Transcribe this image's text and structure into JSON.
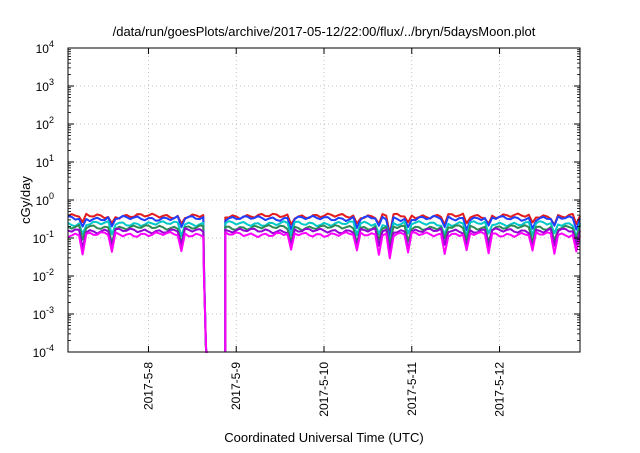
{
  "chart_data": {
    "type": "line",
    "title": "/data/run/goesPlots/archive/2017-05-12/22:00/flux/../bryn/5daysMoon.plot",
    "xlabel": "Coordinated Universal Time (UTC)",
    "ylabel": "cGy/day",
    "y_scale": "log",
    "ylim": [
      0.0001,
      10000
    ],
    "xlim": [
      "2017-05-07 02:00",
      "2017-05-12 22:00"
    ],
    "y_ticks": [
      {
        "value": 0.0001,
        "base": "10",
        "exp": "-4"
      },
      {
        "value": 0.001,
        "base": "10",
        "exp": "-3"
      },
      {
        "value": 0.01,
        "base": "10",
        "exp": "-2"
      },
      {
        "value": 0.1,
        "base": "10",
        "exp": "-1"
      },
      {
        "value": 1,
        "base": "10",
        "exp": "0"
      },
      {
        "value": 10,
        "base": "10",
        "exp": "1"
      },
      {
        "value": 100,
        "base": "10",
        "exp": "2"
      },
      {
        "value": 1000,
        "base": "10",
        "exp": "3"
      },
      {
        "value": 10000,
        "base": "10",
        "exp": "4"
      }
    ],
    "x_ticks": [
      {
        "value": "2017-05-08 00:00",
        "label": "2017-5-8"
      },
      {
        "value": "2017-05-09 00:00",
        "label": "2017-5-9"
      },
      {
        "value": "2017-05-10 00:00",
        "label": "2017-5-10"
      },
      {
        "value": "2017-05-11 00:00",
        "label": "2017-5-11"
      },
      {
        "value": "2017-05-12 00:00",
        "label": "2017-5-12"
      }
    ],
    "grid": true,
    "legend": "none",
    "gap": {
      "start": "2017-05-08 15:00",
      "end": "2017-05-08 20:30"
    },
    "dips": [
      "2017-05-07 06:00",
      "2017-05-07 14:00",
      "2017-05-08 09:00",
      "2017-05-09 15:00",
      "2017-05-10 09:00",
      "2017-05-10 15:00",
      "2017-05-10 23:00",
      "2017-05-11 09:00",
      "2017-05-11 15:00",
      "2017-05-11 21:00",
      "2017-05-12 09:00",
      "2017-05-12 15:00",
      "2017-05-12 21:00"
    ],
    "deep_dips": [
      "2017-05-10 18:00"
    ],
    "series": [
      {
        "color": "#e41a1c",
        "base": 0.38
      },
      {
        "color": "#1f3fff",
        "base": 0.33
      },
      {
        "color": "#00c8c8",
        "base": 0.24
      },
      {
        "color": "#2e8b57",
        "base": 0.19
      },
      {
        "color": "#9400d3",
        "base": 0.155
      },
      {
        "color": "#ff00ff",
        "base": 0.125
      }
    ]
  }
}
